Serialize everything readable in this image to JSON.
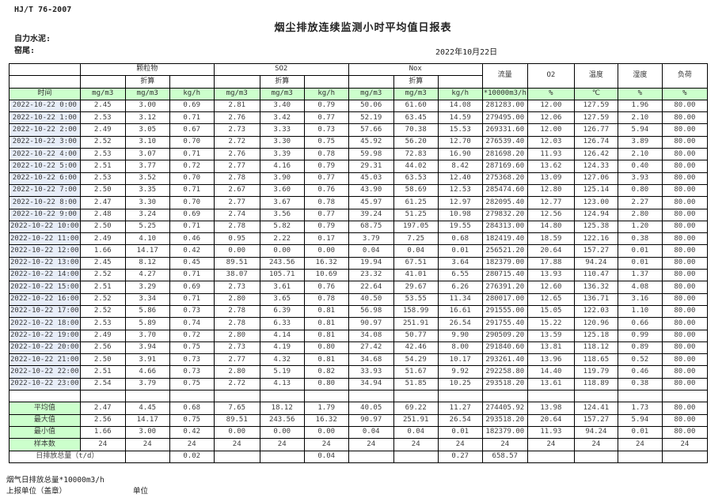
{
  "page": {
    "standard": "HJ/T  76-2007",
    "title": "烟尘排放连续监测小时平均值日报表",
    "company": "自力水泥:",
    "location": "窑尾:",
    "date": "2022年10月22日"
  },
  "colors": {
    "unit_row_green": "#ccffcc",
    "time_col_blue": "#e7edf8",
    "border_black": "#000000"
  },
  "table": {
    "time_label": "时间",
    "converted_label": "折算",
    "groups": {
      "pm": "颗粒物",
      "so2": "SO2",
      "nox": "Nox",
      "flow": "流量",
      "o2": "O2",
      "temp": "温度",
      "humidity": "湿度",
      "load": "负荷"
    },
    "units": [
      "mg/m3",
      "mg/m3",
      "kg/h",
      "mg/m3",
      "mg/m3",
      "kg/h",
      "mg/m3",
      "mg/m3",
      "kg/h",
      "*10000m3/h",
      "%",
      "℃",
      "%",
      "%"
    ],
    "rows": [
      [
        "2022-10-22 0:00",
        "2.45",
        "3.00",
        "0.69",
        "2.81",
        "3.40",
        "0.79",
        "50.06",
        "61.60",
        "14.08",
        "281283.00",
        "12.00",
        "127.59",
        "1.96",
        "80.00"
      ],
      [
        "2022-10-22 1:00",
        "2.53",
        "3.12",
        "0.71",
        "2.76",
        "3.42",
        "0.77",
        "52.19",
        "63.45",
        "14.59",
        "279495.00",
        "12.06",
        "127.59",
        "2.10",
        "80.00"
      ],
      [
        "2022-10-22 2:00",
        "2.49",
        "3.05",
        "0.67",
        "2.73",
        "3.33",
        "0.73",
        "57.66",
        "70.38",
        "15.53",
        "269331.60",
        "12.00",
        "126.77",
        "5.94",
        "80.00"
      ],
      [
        "2022-10-22 3:00",
        "2.52",
        "3.10",
        "0.70",
        "2.72",
        "3.30",
        "0.75",
        "45.92",
        "56.20",
        "12.70",
        "276539.40",
        "12.03",
        "126.74",
        "3.89",
        "80.00"
      ],
      [
        "2022-10-22 4:00",
        "2.53",
        "3.07",
        "0.71",
        "2.76",
        "3.39",
        "0.78",
        "59.98",
        "72.83",
        "16.90",
        "281698.20",
        "11.93",
        "126.42",
        "2.10",
        "80.00"
      ],
      [
        "2022-10-22 5:00",
        "2.51",
        "3.77",
        "0.72",
        "2.77",
        "4.16",
        "0.79",
        "29.31",
        "44.02",
        "8.42",
        "287169.60",
        "13.62",
        "124.33",
        "0.40",
        "80.00"
      ],
      [
        "2022-10-22 6:00",
        "2.53",
        "3.52",
        "0.70",
        "2.78",
        "3.90",
        "0.77",
        "45.03",
        "63.53",
        "12.40",
        "275368.20",
        "13.09",
        "127.06",
        "3.93",
        "80.00"
      ],
      [
        "2022-10-22 7:00",
        "2.50",
        "3.35",
        "0.71",
        "2.67",
        "3.60",
        "0.76",
        "43.90",
        "58.69",
        "12.53",
        "285474.60",
        "12.80",
        "125.14",
        "0.80",
        "80.00"
      ],
      [
        "2022-10-22 8:00",
        "2.47",
        "3.30",
        "0.70",
        "2.77",
        "3.67",
        "0.78",
        "45.97",
        "61.25",
        "12.97",
        "282095.40",
        "12.77",
        "123.00",
        "2.27",
        "80.00"
      ],
      [
        "2022-10-22 9:00",
        "2.48",
        "3.24",
        "0.69",
        "2.74",
        "3.56",
        "0.77",
        "39.24",
        "51.25",
        "10.98",
        "279832.20",
        "12.56",
        "124.94",
        "2.80",
        "80.00"
      ],
      [
        "2022-10-22 10:00",
        "2.50",
        "5.25",
        "0.71",
        "2.78",
        "5.82",
        "0.79",
        "68.75",
        "197.05",
        "19.55",
        "284313.00",
        "14.80",
        "125.38",
        "1.20",
        "80.00"
      ],
      [
        "2022-10-22 11:00",
        "2.49",
        "4.10",
        "0.46",
        "0.95",
        "2.22",
        "0.17",
        "3.79",
        "7.25",
        "0.68",
        "182419.40",
        "18.59",
        "122.16",
        "0.38",
        "80.00"
      ],
      [
        "2022-10-22 12:00",
        "1.66",
        "14.17",
        "0.42",
        "0.00",
        "0.00",
        "0.00",
        "0.04",
        "0.04",
        "0.01",
        "256521.20",
        "20.64",
        "157.27",
        "0.01",
        "80.00"
      ],
      [
        "2022-10-22 13:00",
        "2.45",
        "8.12",
        "0.45",
        "89.51",
        "243.56",
        "16.32",
        "19.94",
        "67.51",
        "3.64",
        "182379.00",
        "17.88",
        "94.24",
        "0.01",
        "80.00"
      ],
      [
        "2022-10-22 14:00",
        "2.52",
        "4.27",
        "0.71",
        "38.07",
        "105.71",
        "10.69",
        "23.32",
        "41.01",
        "6.55",
        "280715.40",
        "13.93",
        "110.47",
        "1.37",
        "80.00"
      ],
      [
        "2022-10-22 15:00",
        "2.51",
        "3.29",
        "0.69",
        "2.73",
        "3.61",
        "0.76",
        "22.64",
        "29.67",
        "6.26",
        "276391.20",
        "12.60",
        "136.32",
        "4.08",
        "80.00"
      ],
      [
        "2022-10-22 16:00",
        "2.52",
        "3.34",
        "0.71",
        "2.80",
        "3.65",
        "0.78",
        "40.50",
        "53.55",
        "11.34",
        "280017.00",
        "12.65",
        "136.71",
        "3.16",
        "80.00"
      ],
      [
        "2022-10-22 17:00",
        "2.52",
        "5.86",
        "0.73",
        "2.78",
        "6.39",
        "0.81",
        "56.98",
        "158.99",
        "16.61",
        "291555.00",
        "15.05",
        "122.03",
        "1.10",
        "80.00"
      ],
      [
        "2022-10-22 18:00",
        "2.53",
        "5.89",
        "0.74",
        "2.78",
        "6.33",
        "0.81",
        "90.97",
        "251.91",
        "26.54",
        "291755.40",
        "15.22",
        "120.96",
        "0.66",
        "80.00"
      ],
      [
        "2022-10-22 19:00",
        "2.49",
        "3.70",
        "0.72",
        "2.80",
        "4.14",
        "0.81",
        "34.08",
        "50.77",
        "9.90",
        "290509.20",
        "13.59",
        "125.18",
        "0.99",
        "80.00"
      ],
      [
        "2022-10-22 20:00",
        "2.56",
        "3.94",
        "0.75",
        "2.73",
        "4.19",
        "0.80",
        "27.42",
        "42.46",
        "8.00",
        "291840.60",
        "13.81",
        "118.12",
        "0.89",
        "80.00"
      ],
      [
        "2022-10-22 21:00",
        "2.50",
        "3.91",
        "0.73",
        "2.77",
        "4.32",
        "0.81",
        "34.68",
        "54.29",
        "10.17",
        "293261.40",
        "13.96",
        "118.65",
        "0.52",
        "80.00"
      ],
      [
        "2022-10-22 22:00",
        "2.51",
        "4.66",
        "0.73",
        "2.80",
        "5.19",
        "0.82",
        "33.93",
        "51.67",
        "9.92",
        "292258.80",
        "14.40",
        "119.79",
        "0.46",
        "80.00"
      ],
      [
        "2022-10-22 23:00",
        "2.54",
        "3.79",
        "0.75",
        "2.72",
        "4.13",
        "0.80",
        "34.94",
        "51.85",
        "10.25",
        "293518.20",
        "13.61",
        "118.89",
        "0.38",
        "80.00"
      ]
    ],
    "summary": [
      {
        "label": "平均值",
        "values": [
          "2.47",
          "4.45",
          "0.68",
          "7.65",
          "18.12",
          "1.79",
          "40.05",
          "69.22",
          "11.27",
          "274405.92",
          "13.98",
          "124.41",
          "1.73",
          "80.00"
        ]
      },
      {
        "label": "最大值",
        "values": [
          "2.56",
          "14.17",
          "0.75",
          "89.51",
          "243.56",
          "16.32",
          "90.97",
          "251.91",
          "26.54",
          "293518.20",
          "20.64",
          "157.27",
          "5.94",
          "80.00"
        ]
      },
      {
        "label": "最小值",
        "values": [
          "1.66",
          "3.00",
          "0.42",
          "0.00",
          "0.00",
          "0.00",
          "0.04",
          "0.04",
          "0.01",
          "182379.00",
          "11.93",
          "94.24",
          "0.01",
          "80.00"
        ]
      },
      {
        "label": "样本数",
        "values": [
          "24",
          "24",
          "24",
          "24",
          "24",
          "24",
          "24",
          "24",
          "24",
          "24",
          "24",
          "24",
          "24",
          "24"
        ]
      }
    ],
    "daily_total": {
      "label": "日排放总量（t/d）",
      "values": [
        "",
        "0.02",
        "",
        "",
        "0.04",
        "",
        "",
        "0.27",
        "658.57",
        "",
        "",
        "",
        ""
      ]
    }
  },
  "footer": {
    "flow_total_label": "烟气日排放总量*10000m3/h",
    "report_unit_label": "上报单位（盖章）",
    "unit_label": "单位"
  }
}
